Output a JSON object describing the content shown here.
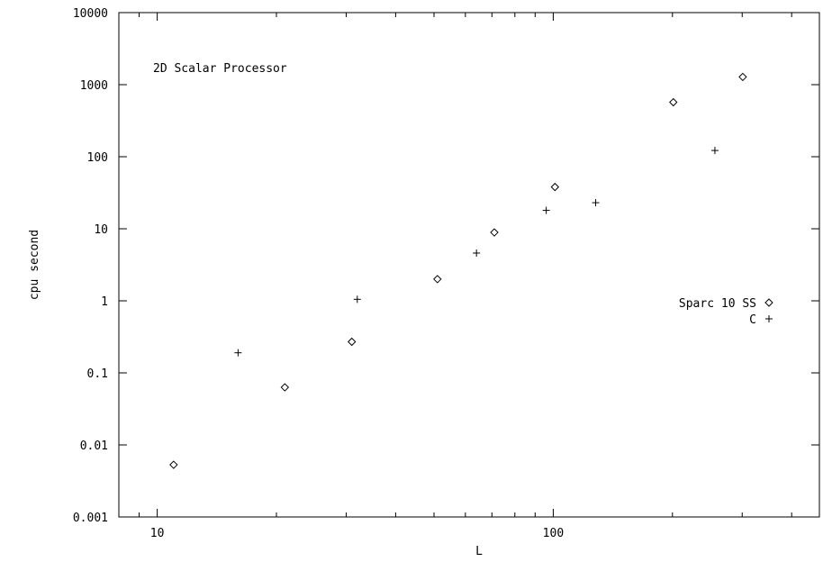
{
  "chart_data": {
    "type": "scatter",
    "title": "2D Scalar Processor",
    "xlabel": "L",
    "ylabel": "cpu second",
    "xscale": "log",
    "yscale": "log",
    "xlim": [
      8,
      470
    ],
    "ylim": [
      0.001,
      10000
    ],
    "x_ticks": [
      10,
      100
    ],
    "x_tick_labels": [
      "10",
      "100"
    ],
    "y_ticks": [
      0.001,
      0.01,
      0.1,
      1,
      10,
      100,
      1000,
      10000
    ],
    "y_tick_labels": [
      "0.001",
      "0.01",
      "0.1",
      "1",
      "10",
      "100",
      "1000",
      "10000"
    ],
    "grid": false,
    "legend_position": "right-middle",
    "series": [
      {
        "name": "Sparc 10 SS",
        "marker": "diamond",
        "x": [
          11,
          21,
          31,
          51,
          71,
          101,
          201,
          301
        ],
        "y": [
          0.0053,
          0.063,
          0.27,
          2.0,
          8.9,
          38,
          570,
          1280
        ]
      },
      {
        "name": "C",
        "marker": "plus",
        "x": [
          16,
          32,
          64,
          96,
          128,
          256
        ],
        "y": [
          0.19,
          1.05,
          4.6,
          18,
          23,
          122
        ]
      }
    ]
  }
}
